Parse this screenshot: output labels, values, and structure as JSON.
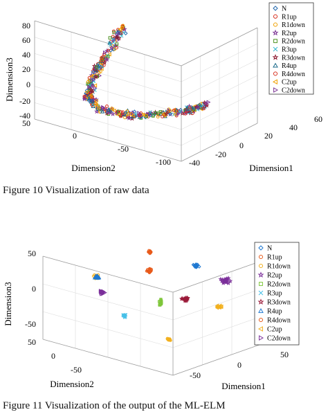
{
  "figures": [
    {
      "caption": "Figure 10 Visualization of raw data",
      "chart_data": {
        "type": "scatter",
        "projection": "3d",
        "title": "",
        "xlabel": "Dimension1",
        "ylabel": "Dimension2",
        "zlabel": "Dimension3",
        "xticks": [
          "-40",
          "-20",
          "0",
          "20",
          "40",
          "60"
        ],
        "yticks": [
          "50",
          "0",
          "-50",
          "-100"
        ],
        "zticks": [
          "80",
          "60",
          "40",
          "20",
          "0",
          "-20",
          "-40"
        ],
        "xlim": [
          -40,
          60
        ],
        "ylim": [
          -100,
          50
        ],
        "zlim": [
          -40,
          90
        ],
        "grid": true,
        "legend": "top-right",
        "series": [
          {
            "name": "N",
            "marker": "diamond",
            "color": "#2166ac"
          },
          {
            "name": "R1up",
            "marker": "circle",
            "color": "#d7301f"
          },
          {
            "name": "R1down",
            "marker": "circle",
            "color": "#f0a000"
          },
          {
            "name": "R2up",
            "marker": "star",
            "color": "#7b3294"
          },
          {
            "name": "R2down",
            "marker": "square",
            "color": "#4d9221"
          },
          {
            "name": "R3up",
            "marker": "x",
            "color": "#35b7d0"
          },
          {
            "name": "R3down",
            "marker": "star",
            "color": "#8c1a30"
          },
          {
            "name": "R4up",
            "marker": "triangle",
            "color": "#1a6a8a"
          },
          {
            "name": "R4down",
            "marker": "circle",
            "color": "#d7301f"
          },
          {
            "name": "C2up",
            "marker": "triangle-left",
            "color": "#f0a000"
          },
          {
            "name": "C2down",
            "marker": "triangle-right",
            "color": "#7b3294"
          }
        ],
        "distribution": "all classes intermixed along one curved manifold"
      }
    },
    {
      "caption": "Figure 11 Visualization of the output of the ML-ELM",
      "chart_data": {
        "type": "scatter",
        "projection": "3d",
        "title": "",
        "xlabel": "Dimension1",
        "ylabel": "Dimension2",
        "zlabel": "Dimension3",
        "xticks": [
          "-50",
          "0",
          "50"
        ],
        "yticks": [
          "50",
          "0",
          "-50"
        ],
        "zticks": [
          "50",
          "0",
          "-50"
        ],
        "xlim": [
          -70,
          70
        ],
        "ylim": [
          -60,
          60
        ],
        "zlim": [
          -60,
          60
        ],
        "grid": true,
        "legend": "right",
        "series": [
          {
            "name": "N",
            "marker": "diamond",
            "color": "#1f78d1"
          },
          {
            "name": "R1up",
            "marker": "circle",
            "color": "#e85a1a"
          },
          {
            "name": "R1down",
            "marker": "circle",
            "color": "#f2b01e"
          },
          {
            "name": "R2up",
            "marker": "star",
            "color": "#7b2f9a"
          },
          {
            "name": "R2down",
            "marker": "square",
            "color": "#7ec63a"
          },
          {
            "name": "R3up",
            "marker": "x",
            "color": "#47c0e8"
          },
          {
            "name": "R3down",
            "marker": "star",
            "color": "#9b1b3a"
          },
          {
            "name": "R4up",
            "marker": "triangle",
            "color": "#1f78d1"
          },
          {
            "name": "R4down",
            "marker": "circle",
            "color": "#e85a1a"
          },
          {
            "name": "C2up",
            "marker": "triangle-left",
            "color": "#f2b01e"
          },
          {
            "name": "C2down",
            "marker": "triangle-right",
            "color": "#7b2f9a"
          }
        ],
        "distribution": "each class forms a separate compact cluster"
      }
    }
  ]
}
